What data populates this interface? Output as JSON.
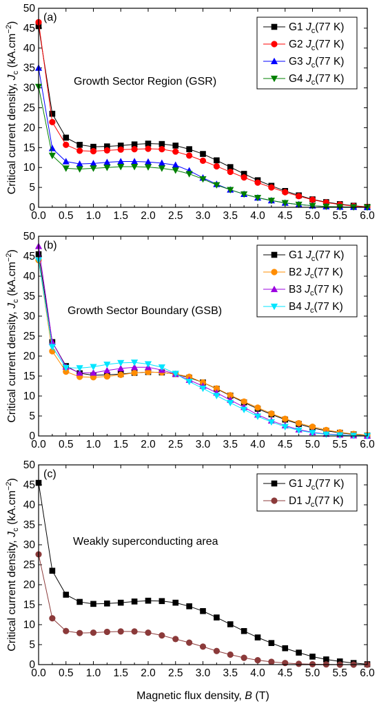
{
  "chart_data": [
    {
      "type": "line",
      "panel_label": "(a)",
      "annotation": "Growth Sector Region (GSR)",
      "ylabel": "Critical current density, J_c (kA.cm^-2)",
      "xlabel": "",
      "xlim": [
        0,
        6.0
      ],
      "ylim": [
        0,
        50
      ],
      "x_ticks": [
        "0.0",
        "0.5",
        "1.0",
        "1.5",
        "2.0",
        "2.5",
        "3.0",
        "3.5",
        "4.0",
        "4.5",
        "5.0",
        "5.5",
        "6.0"
      ],
      "y_ticks": [
        "0",
        "5",
        "10",
        "15",
        "20",
        "25",
        "30",
        "35",
        "40",
        "45",
        "50"
      ],
      "legend_position": "top-right",
      "x": [
        0,
        0.25,
        0.5,
        0.75,
        1.0,
        1.25,
        1.5,
        1.75,
        2.0,
        2.25,
        2.5,
        2.75,
        3.0,
        3.25,
        3.5,
        3.75,
        4.0,
        4.25,
        4.5,
        4.75,
        5.0,
        5.25,
        5.5,
        5.75,
        6.0
      ],
      "series": [
        {
          "name": "G1",
          "sub": "c",
          "suffix": "(77 K)",
          "color": "#000000",
          "marker": "square",
          "values": [
            45.5,
            23.5,
            17.5,
            15.7,
            15.2,
            15.3,
            15.5,
            15.8,
            16.0,
            15.9,
            15.5,
            14.6,
            13.4,
            11.8,
            10.1,
            8.4,
            6.8,
            5.4,
            4.1,
            3.0,
            2.0,
            1.3,
            0.8,
            0.4,
            0.1
          ]
        },
        {
          "name": "G2",
          "sub": "c",
          "suffix": "(77 K)",
          "color": "#ff0000",
          "marker": "circle",
          "values": [
            46.5,
            21.4,
            15.7,
            14.2,
            14.1,
            14.3,
            14.5,
            14.6,
            14.7,
            14.6,
            14.0,
            13.0,
            11.7,
            10.3,
            8.9,
            7.5,
            6.2,
            5.0,
            3.8,
            2.8,
            1.9,
            1.2,
            0.7,
            0.3,
            0.1
          ]
        },
        {
          "name": "G3",
          "sub": "c",
          "suffix": "(77 K)",
          "color": "#0000ff",
          "marker": "triangle-up",
          "values": [
            35.0,
            14.8,
            11.5,
            10.9,
            11.0,
            11.3,
            11.5,
            11.5,
            11.4,
            11.1,
            10.6,
            9.2,
            7.4,
            5.8,
            4.4,
            3.3,
            2.4,
            1.7,
            1.1,
            0.7,
            0.4,
            0.2,
            0.1,
            0.05,
            0.0
          ]
        },
        {
          "name": "G4",
          "sub": "c",
          "suffix": "(77 K)",
          "color": "#008000",
          "marker": "triangle-down",
          "values": [
            30.3,
            13.0,
            9.8,
            9.6,
            9.8,
            10.0,
            10.2,
            10.2,
            10.1,
            9.8,
            9.3,
            8.4,
            7.1,
            5.6,
            4.4,
            3.3,
            2.4,
            1.7,
            1.1,
            0.7,
            0.4,
            0.2,
            0.1,
            0.05,
            0.0
          ]
        }
      ]
    },
    {
      "type": "line",
      "panel_label": "(b)",
      "annotation": "Growth Sector Boundary (GSB)",
      "ylabel": "Critical current density, J_c (kA.cm^-2)",
      "xlabel": "",
      "xlim": [
        0,
        6.0
      ],
      "ylim": [
        0,
        50
      ],
      "x_ticks": [
        "0.0",
        "0.5",
        "1.0",
        "1.5",
        "2.0",
        "2.5",
        "3.0",
        "3.5",
        "4.0",
        "4.5",
        "5.0",
        "5.5",
        "6.0"
      ],
      "y_ticks": [
        "0",
        "5",
        "10",
        "15",
        "20",
        "25",
        "30",
        "35",
        "40",
        "45",
        "50"
      ],
      "legend_position": "top-right",
      "x": [
        0,
        0.25,
        0.5,
        0.75,
        1.0,
        1.25,
        1.5,
        1.75,
        2.0,
        2.25,
        2.5,
        2.75,
        3.0,
        3.25,
        3.5,
        3.75,
        4.0,
        4.25,
        4.5,
        4.75,
        5.0,
        5.25,
        5.5,
        5.75,
        6.0
      ],
      "series": [
        {
          "name": "G1",
          "sub": "c",
          "suffix": "(77 K)",
          "color": "#000000",
          "marker": "square",
          "values": [
            45.5,
            23.5,
            17.5,
            15.7,
            15.2,
            15.3,
            15.5,
            15.8,
            16.0,
            15.9,
            15.5,
            14.6,
            13.4,
            11.8,
            10.1,
            8.4,
            6.8,
            5.4,
            4.1,
            3.0,
            2.0,
            1.3,
            0.8,
            0.4,
            0.1
          ]
        },
        {
          "name": "B2",
          "sub": "c",
          "suffix": "(77 K)",
          "color": "#ff8c00",
          "marker": "circle",
          "values": [
            44.0,
            21.2,
            16.1,
            14.8,
            14.7,
            14.9,
            15.3,
            15.8,
            16.0,
            15.9,
            15.5,
            14.8,
            13.4,
            11.9,
            10.2,
            8.6,
            7.1,
            5.6,
            4.3,
            3.2,
            2.3,
            1.5,
            0.9,
            0.5,
            0.2
          ]
        },
        {
          "name": "B3",
          "sub": "c",
          "suffix": "(77 K)",
          "color": "#9b00e0",
          "marker": "triangle-up",
          "values": [
            47.5,
            23.5,
            17.3,
            15.8,
            15.8,
            16.4,
            16.9,
            17.2,
            17.2,
            16.5,
            15.5,
            14.0,
            12.5,
            10.8,
            9.0,
            7.2,
            5.3,
            3.8,
            2.6,
            1.6,
            0.9,
            0.5,
            0.3,
            0.1,
            0.0
          ]
        },
        {
          "name": "B4",
          "sub": "c",
          "suffix": "(77 K)",
          "color": "#00e5ff",
          "marker": "triangle-down",
          "values": [
            44.0,
            22.3,
            17.1,
            17.0,
            17.3,
            17.9,
            18.3,
            18.4,
            18.0,
            17.2,
            15.6,
            13.6,
            11.9,
            10.1,
            8.3,
            6.6,
            4.9,
            3.5,
            2.3,
            1.4,
            0.8,
            0.4,
            0.2,
            0.1,
            0.0
          ]
        }
      ]
    },
    {
      "type": "line",
      "panel_label": "(c)",
      "annotation": "Weakly superconducting area",
      "ylabel": "Critical current density, J_c (kA.cm^-2)",
      "xlabel": "Magnetic flux density, B (T)",
      "xlim": [
        0,
        6.0
      ],
      "ylim": [
        0,
        50
      ],
      "x_ticks": [
        "0.0",
        "0.5",
        "1.0",
        "1.5",
        "2.0",
        "2.5",
        "3.0",
        "3.5",
        "4.0",
        "4.5",
        "5.0",
        "5.5",
        "6.0"
      ],
      "y_ticks": [
        "0",
        "5",
        "10",
        "15",
        "20",
        "25",
        "30",
        "35",
        "40",
        "45",
        "50"
      ],
      "legend_position": "top-right",
      "x": [
        0,
        0.25,
        0.5,
        0.75,
        1.0,
        1.25,
        1.5,
        1.75,
        2.0,
        2.25,
        2.5,
        2.75,
        3.0,
        3.25,
        3.5,
        3.75,
        4.0,
        4.25,
        4.5,
        4.75,
        5.0,
        5.25,
        5.5,
        5.75,
        6.0
      ],
      "series": [
        {
          "name": "G1",
          "sub": "c",
          "suffix": "(77 K)",
          "color": "#000000",
          "marker": "square",
          "values": [
            45.5,
            23.5,
            17.5,
            15.7,
            15.2,
            15.3,
            15.5,
            15.8,
            16.0,
            15.9,
            15.5,
            14.6,
            13.4,
            11.8,
            10.1,
            8.4,
            6.8,
            5.4,
            4.1,
            3.0,
            2.0,
            1.3,
            0.8,
            0.4,
            0.1
          ]
        },
        {
          "name": "D1",
          "sub": "c",
          "suffix": "(77 K)",
          "color": "#8b3a3a",
          "marker": "circle",
          "values": [
            27.6,
            11.6,
            8.4,
            7.9,
            8.0,
            8.2,
            8.3,
            8.3,
            8.0,
            7.3,
            6.4,
            5.5,
            4.5,
            3.4,
            2.5,
            1.7,
            1.1,
            0.7,
            0.4,
            0.2,
            0.1,
            0.05,
            0.0,
            0.0,
            0.0
          ]
        }
      ]
    }
  ]
}
